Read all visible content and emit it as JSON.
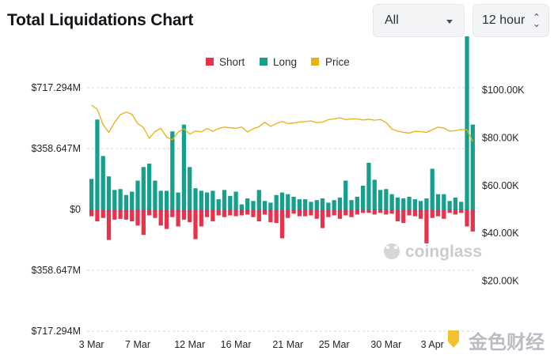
{
  "header": {
    "title": "Total Liquidations Chart",
    "range_select": "All",
    "interval_select": "12 hour"
  },
  "watermarks": {
    "coinglass": "coinglass",
    "jinse": "金色财经"
  },
  "colors": {
    "short": "#e8314a",
    "long": "#14a08c",
    "price": "#e9b10f",
    "grid": "#d7dade"
  },
  "chart_data": {
    "type": "bar",
    "legend": [
      "Short",
      "Long",
      "Price"
    ],
    "legend_position": "top",
    "grid": true,
    "x_tick_labels": [
      "3 Mar",
      "7 Mar",
      "12 Mar",
      "16 Mar",
      "21 Mar",
      "25 Mar",
      "30 Mar",
      "3 Apr"
    ],
    "x_tick_index": [
      0,
      8,
      17,
      25,
      34,
      42,
      51,
      59
    ],
    "left_axis": {
      "unit": "USD",
      "tick_labels": [
        "$717.294M",
        "$358.647M",
        "$0",
        "$358.647M",
        "$717.294M"
      ],
      "tick_values": [
        717.294,
        358.647,
        0,
        -358.647,
        -717.294
      ],
      "range_millions": [
        -717.294,
        717.294
      ]
    },
    "right_axis": {
      "tick_labels": [
        "$100.00K",
        "$80.00K",
        "$60.00K",
        "$40.00K",
        "$20.00K"
      ],
      "tick_values": [
        100000,
        80000,
        60000,
        40000,
        20000
      ],
      "range": [
        0,
        100000
      ]
    },
    "series": [
      {
        "name": "Long",
        "unit": "USD millions",
        "values": [
          180,
          530,
          315,
          195,
          115,
          120,
          85,
          105,
          170,
          250,
          270,
          170,
          110,
          110,
          460,
          100,
          500,
          250,
          125,
          110,
          100,
          110,
          60,
          115,
          80,
          105,
          30,
          65,
          50,
          115,
          50,
          40,
          85,
          100,
          90,
          75,
          60,
          60,
          45,
          55,
          65,
          40,
          55,
          70,
          170,
          55,
          75,
          140,
          275,
          175,
          115,
          120,
          90,
          70,
          65,
          75,
          60,
          50,
          65,
          240,
          90,
          90,
          50,
          70,
          45,
          1020,
          500
        ]
      },
      {
        "name": "Short",
        "unit": "USD millions",
        "values": [
          -40,
          -70,
          -50,
          -180,
          -60,
          -55,
          -60,
          -70,
          -95,
          -150,
          -35,
          -50,
          -95,
          -115,
          -45,
          -100,
          -60,
          -75,
          -175,
          -100,
          -45,
          -70,
          -35,
          -45,
          -35,
          -40,
          -35,
          -30,
          -45,
          -70,
          -30,
          -75,
          -80,
          -170,
          -50,
          -25,
          -40,
          -40,
          -35,
          -55,
          -110,
          -45,
          -35,
          -55,
          -35,
          -45,
          -30,
          -20,
          -20,
          -30,
          -20,
          -30,
          -25,
          -70,
          -80,
          -35,
          -40,
          -55,
          -200,
          -50,
          -40,
          -55,
          -20,
          -30,
          -20,
          -100,
          -130
        ]
      },
      {
        "name": "Price",
        "unit": "USD",
        "values": [
          93700,
          92000,
          85600,
          82300,
          86500,
          89700,
          90800,
          89900,
          86000,
          84300,
          79800,
          82600,
          84000,
          80300,
          79200,
          82400,
          83800,
          81500,
          82900,
          82500,
          83900,
          82700,
          83900,
          84500,
          84200,
          84000,
          84500,
          82500,
          83800,
          84700,
          86500,
          84800,
          86000,
          86900,
          86000,
          86200,
          86700,
          86800,
          87100,
          86400,
          86600,
          87600,
          87900,
          88400,
          87600,
          87900,
          87900,
          87500,
          87800,
          87400,
          87700,
          86400,
          83700,
          82800,
          82300,
          82000,
          82700,
          82600,
          82300,
          83400,
          84500,
          84100,
          82800,
          83000,
          83500,
          83400,
          78500
        ]
      }
    ]
  }
}
